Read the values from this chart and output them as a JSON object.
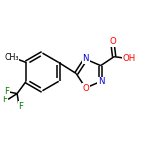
{
  "bg_color": "#ffffff",
  "bond_color": "#000000",
  "atom_colors": {
    "N": "#0000cd",
    "O": "#ff0000",
    "F": "#008000",
    "C": "#000000"
  },
  "line_width": 1.1,
  "figsize": [
    1.52,
    1.52
  ],
  "dpi": 100
}
